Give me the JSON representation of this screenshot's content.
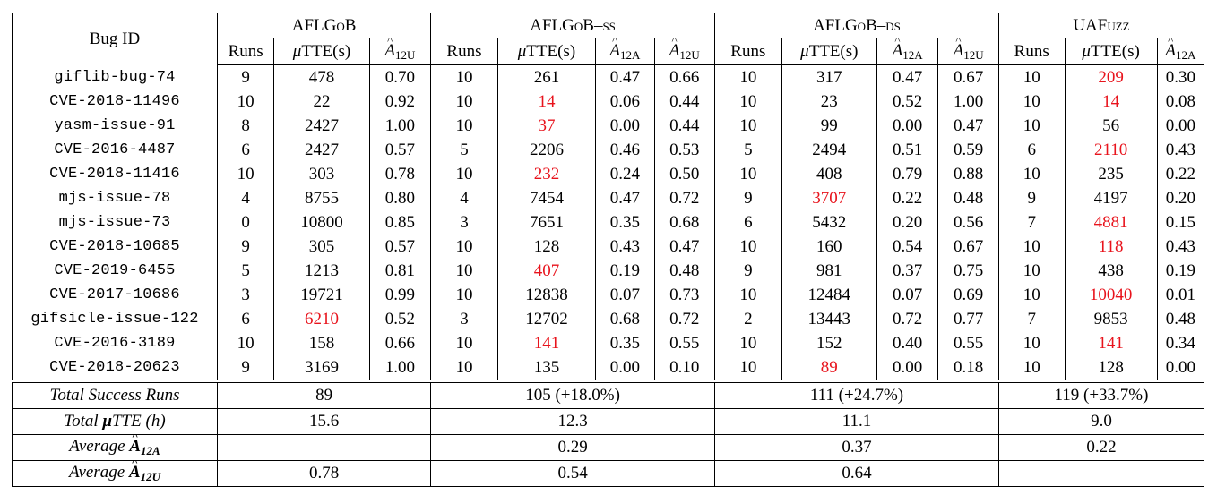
{
  "header": {
    "bug_id": "Bug ID",
    "groups": [
      "AFLGoB",
      "AFLGoB–ss",
      "AFLGoB–ds",
      "UAFuzz"
    ],
    "runs": "Runs",
    "mu": "μ",
    "tte": "TTE(s)",
    "a": "A",
    "a12a_sub": "12A",
    "a12u_sub": "12U"
  },
  "rows": [
    {
      "id": "giflib-bug-74",
      "b_runs": "9",
      "b_tte": "478",
      "b_a12u": "0.70",
      "ss_runs": "10",
      "ss_tte": "261",
      "ss_a12a": "0.47",
      "ss_a12u": "0.66",
      "ds_runs": "10",
      "ds_tte": "317",
      "ds_a12a": "0.47",
      "ds_a12u": "0.67",
      "u_runs": "10",
      "u_tte": "209",
      "u_a12a": "0.30"
    },
    {
      "id": "CVE-2018-11496",
      "b_runs": "10",
      "b_tte": "22",
      "b_a12u": "0.92",
      "ss_runs": "10",
      "ss_tte": "14",
      "ss_a12a": "0.06",
      "ss_a12u": "0.44",
      "ds_runs": "10",
      "ds_tte": "23",
      "ds_a12a": "0.52",
      "ds_a12u": "1.00",
      "u_runs": "10",
      "u_tte": "14",
      "u_a12a": "0.08"
    },
    {
      "id": "yasm-issue-91",
      "b_runs": "8",
      "b_tte": "2427",
      "b_a12u": "1.00",
      "ss_runs": "10",
      "ss_tte": "37",
      "ss_a12a": "0.00",
      "ss_a12u": "0.44",
      "ds_runs": "10",
      "ds_tte": "99",
      "ds_a12a": "0.00",
      "ds_a12u": "0.47",
      "u_runs": "10",
      "u_tte": "56",
      "u_a12a": "0.00"
    },
    {
      "id": "CVE-2016-4487",
      "b_runs": "6",
      "b_tte": "2427",
      "b_a12u": "0.57",
      "ss_runs": "5",
      "ss_tte": "2206",
      "ss_a12a": "0.46",
      "ss_a12u": "0.53",
      "ds_runs": "5",
      "ds_tte": "2494",
      "ds_a12a": "0.51",
      "ds_a12u": "0.59",
      "u_runs": "6",
      "u_tte": "2110",
      "u_a12a": "0.43"
    },
    {
      "id": "CVE-2018-11416",
      "b_runs": "10",
      "b_tte": "303",
      "b_a12u": "0.78",
      "ss_runs": "10",
      "ss_tte": "232",
      "ss_a12a": "0.24",
      "ss_a12u": "0.50",
      "ds_runs": "10",
      "ds_tte": "408",
      "ds_a12a": "0.79",
      "ds_a12u": "0.88",
      "u_runs": "10",
      "u_tte": "235",
      "u_a12a": "0.22"
    },
    {
      "id": "mjs-issue-78",
      "b_runs": "4",
      "b_tte": "8755",
      "b_a12u": "0.80",
      "ss_runs": "4",
      "ss_tte": "7454",
      "ss_a12a": "0.47",
      "ss_a12u": "0.72",
      "ds_runs": "9",
      "ds_tte": "3707",
      "ds_a12a": "0.22",
      "ds_a12u": "0.48",
      "u_runs": "9",
      "u_tte": "4197",
      "u_a12a": "0.20"
    },
    {
      "id": "mjs-issue-73",
      "b_runs": "0",
      "b_tte": "10800",
      "b_a12u": "0.85",
      "ss_runs": "3",
      "ss_tte": "7651",
      "ss_a12a": "0.35",
      "ss_a12u": "0.68",
      "ds_runs": "6",
      "ds_tte": "5432",
      "ds_a12a": "0.20",
      "ds_a12u": "0.56",
      "u_runs": "7",
      "u_tte": "4881",
      "u_a12a": "0.15"
    },
    {
      "id": "CVE-2018-10685",
      "b_runs": "9",
      "b_tte": "305",
      "b_a12u": "0.57",
      "ss_runs": "10",
      "ss_tte": "128",
      "ss_a12a": "0.43",
      "ss_a12u": "0.47",
      "ds_runs": "10",
      "ds_tte": "160",
      "ds_a12a": "0.54",
      "ds_a12u": "0.67",
      "u_runs": "10",
      "u_tte": "118",
      "u_a12a": "0.43"
    },
    {
      "id": "CVE-2019-6455",
      "b_runs": "5",
      "b_tte": "1213",
      "b_a12u": "0.81",
      "ss_runs": "10",
      "ss_tte": "407",
      "ss_a12a": "0.19",
      "ss_a12u": "0.48",
      "ds_runs": "9",
      "ds_tte": "981",
      "ds_a12a": "0.37",
      "ds_a12u": "0.75",
      "u_runs": "10",
      "u_tte": "438",
      "u_a12a": "0.19"
    },
    {
      "id": "CVE-2017-10686",
      "b_runs": "3",
      "b_tte": "19721",
      "b_a12u": "0.99",
      "ss_runs": "10",
      "ss_tte": "12838",
      "ss_a12a": "0.07",
      "ss_a12u": "0.73",
      "ds_runs": "10",
      "ds_tte": "12484",
      "ds_a12a": "0.07",
      "ds_a12u": "0.69",
      "u_runs": "10",
      "u_tte": "10040",
      "u_a12a": "0.01"
    },
    {
      "id": "gifsicle-issue-122",
      "b_runs": "6",
      "b_tte": "6210",
      "b_a12u": "0.52",
      "ss_runs": "3",
      "ss_tte": "12702",
      "ss_a12a": "0.68",
      "ss_a12u": "0.72",
      "ds_runs": "2",
      "ds_tte": "13443",
      "ds_a12a": "0.72",
      "ds_a12u": "0.77",
      "u_runs": "7",
      "u_tte": "9853",
      "u_a12a": "0.48"
    },
    {
      "id": "CVE-2016-3189",
      "b_runs": "10",
      "b_tte": "158",
      "b_a12u": "0.66",
      "ss_runs": "10",
      "ss_tte": "141",
      "ss_a12a": "0.35",
      "ss_a12u": "0.55",
      "ds_runs": "10",
      "ds_tte": "152",
      "ds_a12a": "0.40",
      "ds_a12u": "0.55",
      "u_runs": "10",
      "u_tte": "141",
      "u_a12a": "0.34"
    },
    {
      "id": "CVE-2018-20623",
      "b_runs": "9",
      "b_tte": "3169",
      "b_a12u": "1.00",
      "ss_runs": "10",
      "ss_tte": "135",
      "ss_a12a": "0.00",
      "ss_a12u": "0.10",
      "ds_runs": "10",
      "ds_tte": "89",
      "ds_a12a": "0.00",
      "ds_a12u": "0.18",
      "u_runs": "10",
      "u_tte": "128",
      "u_a12a": "0.00"
    }
  ],
  "summary": {
    "success_label": "Total Success Runs",
    "success": [
      "89",
      "105 (+18.0%)",
      "111 (+24.7%)",
      "119 (+33.7%)"
    ],
    "tte_label_prefix": "Total ",
    "tte_label_suffix": "TTE (h)",
    "tte": [
      "15.6",
      "12.3",
      "11.1",
      "9.0"
    ],
    "avg_label": "Average",
    "avg_a12a": [
      "–",
      "0.29",
      "0.37",
      "0.22"
    ],
    "avg_a12u": [
      "0.78",
      "0.54",
      "0.64",
      "–"
    ]
  },
  "highlight_color": "#e8131c"
}
